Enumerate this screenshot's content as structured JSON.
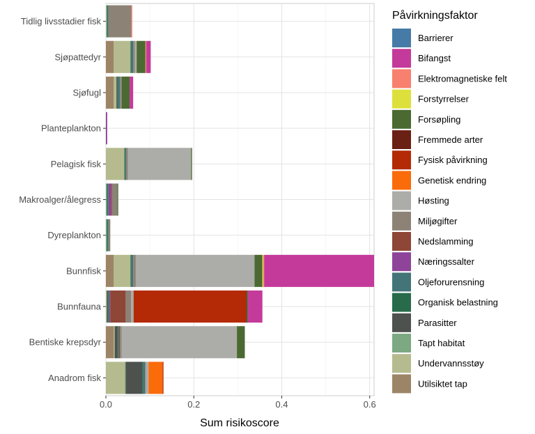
{
  "chart_data": {
    "type": "bar",
    "orientation": "horizontal",
    "stacked": true,
    "xlabel": "Sum risikoscore",
    "ylabel": "",
    "xlim": [
      0,
      0.61
    ],
    "xticks": [
      "0.0",
      "0.2",
      "0.4",
      "0.6"
    ],
    "xtick_values": [
      0,
      0.2,
      0.4,
      0.6
    ],
    "grid": true,
    "legend_position": "right",
    "legend_title": "Påvirkningsfaktor",
    "categories": [
      "Tidlig livsstadier fisk",
      "Sjøpattedyr",
      "Sjøfugl",
      "Planteplankton",
      "Pelagisk fisk",
      "Makroalger/ålegress",
      "Dyreplankton",
      "Bunnfisk",
      "Bunnfauna",
      "Bentiske krepsdyr",
      "Anadrom fisk"
    ],
    "series": [
      {
        "name": "Utilsiktet tap",
        "color": "#9C8466",
        "values": [
          0,
          0.018,
          0.018,
          0,
          0,
          0,
          0,
          0.018,
          0,
          0.018,
          0
        ]
      },
      {
        "name": "Undervannsstøy",
        "color": "#B5BB8E",
        "values": [
          0.002,
          0.038,
          0.006,
          0,
          0.042,
          0,
          0,
          0.038,
          0.002,
          0.002,
          0.043
        ]
      },
      {
        "name": "Tapt habitat",
        "color": "#7CA982",
        "values": [
          0,
          0,
          0,
          0,
          0,
          0.002,
          0.002,
          0,
          0,
          0,
          0.002
        ]
      },
      {
        "name": "Parasitter",
        "color": "#4E524E",
        "values": [
          0,
          0,
          0.002,
          0,
          0,
          0,
          0,
          0,
          0.002,
          0.006,
          0.038
        ]
      },
      {
        "name": "Organisk belastning",
        "color": "#276B4B",
        "values": [
          0.002,
          0.002,
          0.002,
          0,
          0.002,
          0.002,
          0.002,
          0.002,
          0.002,
          0.002,
          0.002
        ]
      },
      {
        "name": "Oljeforurensning",
        "color": "#437478",
        "values": [
          0.002,
          0.004,
          0.004,
          0,
          0.002,
          0.002,
          0.002,
          0.004,
          0.002,
          0.002,
          0.004
        ]
      },
      {
        "name": "Næringssalter",
        "color": "#8E4499",
        "values": [
          0,
          0,
          0,
          0.003,
          0,
          0.006,
          0,
          0,
          0.002,
          0,
          0
        ]
      },
      {
        "name": "Nedslamming",
        "color": "#8E4637",
        "values": [
          0,
          0,
          0,
          0,
          0,
          0.002,
          0,
          0,
          0.035,
          0.002,
          0
        ]
      },
      {
        "name": "Miljøgifter",
        "color": "#8C8276",
        "values": [
          0.052,
          0.004,
          0.004,
          0,
          0.004,
          0.012,
          0.004,
          0.006,
          0.012,
          0.004,
          0.002
        ]
      },
      {
        "name": "Høsting",
        "color": "#ACACA8",
        "values": [
          0,
          0.004,
          0,
          0,
          0.144,
          0,
          0,
          0.27,
          0.006,
          0.262,
          0.006
        ]
      },
      {
        "name": "Genetisk endring",
        "color": "#FA6B0A",
        "values": [
          0,
          0,
          0,
          0,
          0,
          0,
          0,
          0,
          0,
          0,
          0.032
        ]
      },
      {
        "name": "Fysisk påvirkning",
        "color": "#B42A06",
        "values": [
          0,
          0,
          0,
          0,
          0,
          0,
          0,
          0,
          0.256,
          0,
          0.002
        ]
      },
      {
        "name": "Fremmede arter",
        "color": "#6A2013",
        "values": [
          0,
          0,
          0,
          0,
          0,
          0,
          0,
          0,
          0.002,
          0,
          0
        ]
      },
      {
        "name": "Forsøpling",
        "color": "#4A6A31",
        "values": [
          0,
          0.02,
          0.018,
          0,
          0.002,
          0.002,
          0,
          0.018,
          0.002,
          0.018,
          0
        ]
      },
      {
        "name": "Forstyrrelser",
        "color": "#DDE03A",
        "values": [
          0,
          0,
          0,
          0,
          0,
          0,
          0,
          0.002,
          0,
          0,
          0
        ]
      },
      {
        "name": "Elektromagnetiske felt",
        "color": "#F8806E",
        "values": [
          0.002,
          0.002,
          0,
          0,
          0,
          0,
          0,
          0.002,
          0,
          0,
          0
        ]
      },
      {
        "name": "Bifangst",
        "color": "#C43A9A",
        "values": [
          0,
          0.01,
          0.008,
          0,
          0,
          0,
          0,
          0.25,
          0.033,
          0,
          0
        ]
      },
      {
        "name": "Barrierer",
        "color": "#457BA6",
        "values": [
          0,
          0,
          0,
          0,
          0,
          0,
          0,
          0,
          0,
          0,
          0
        ]
      }
    ],
    "legend_order": [
      "Barrierer",
      "Bifangst",
      "Elektromagnetiske felt",
      "Forstyrrelser",
      "Forsøpling",
      "Fremmede arter",
      "Fysisk påvirkning",
      "Genetisk endring",
      "Høsting",
      "Miljøgifter",
      "Nedslamming",
      "Næringssalter",
      "Oljeforurensning",
      "Organisk belastning",
      "Parasitter",
      "Tapt habitat",
      "Undervannsstøy",
      "Utilsiktet tap"
    ]
  }
}
